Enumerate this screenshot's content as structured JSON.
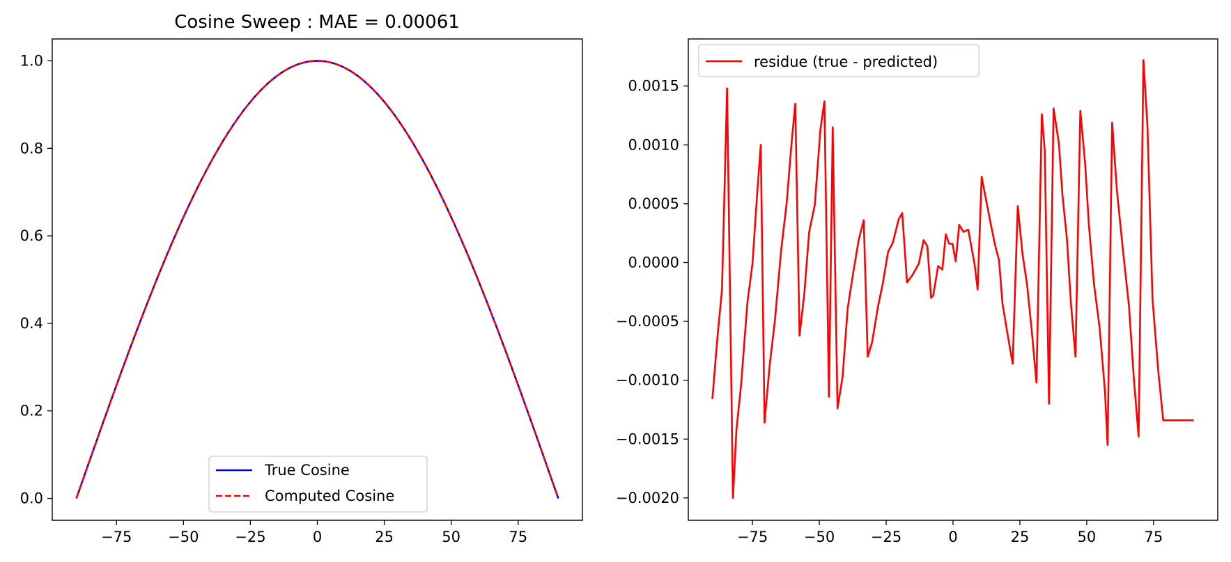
{
  "chart_data": [
    {
      "type": "line",
      "title": "Cosine Sweep : MAE = 0.00061",
      "xlabel": "",
      "ylabel": "",
      "xlim": [
        -99,
        99
      ],
      "ylim": [
        -0.05,
        1.05
      ],
      "xticks": [
        -75,
        -50,
        -25,
        0,
        25,
        50,
        75
      ],
      "xtick_labels": [
        "−75",
        "−50",
        "−25",
        "0",
        "25",
        "50",
        "75"
      ],
      "yticks": [
        0.0,
        0.2,
        0.4,
        0.6,
        0.8,
        1.0
      ],
      "ytick_labels": [
        "0.0",
        "0.2",
        "0.4",
        "0.6",
        "0.8",
        "1.0"
      ],
      "grid": false,
      "legend_position": "lower center",
      "series": [
        {
          "name": "True Cosine",
          "color": "#0000ff",
          "style": "solid",
          "function": "cos_deg",
          "x_range": [
            -90,
            90
          ]
        },
        {
          "name": "Computed Cosine",
          "color": "#ff0000",
          "style": "dashed",
          "function": "cos_deg",
          "x_range": [
            -90,
            90
          ]
        }
      ]
    },
    {
      "type": "line",
      "title": "",
      "xlabel": "",
      "ylabel": "",
      "xlim": [
        -99,
        99
      ],
      "ylim": [
        -0.00219,
        0.0019
      ],
      "xticks": [
        -75,
        -50,
        -25,
        0,
        25,
        50,
        75
      ],
      "xtick_labels": [
        "−75",
        "−50",
        "−25",
        "0",
        "25",
        "50",
        "75"
      ],
      "yticks": [
        -0.002,
        -0.0015,
        -0.001,
        -0.0005,
        0.0,
        0.0005,
        0.001,
        0.0015
      ],
      "ytick_labels": [
        "−0.0020",
        "−0.0015",
        "−0.0010",
        "−0.0005",
        "0.0000",
        "0.0005",
        "0.0010",
        "0.0015"
      ],
      "grid": false,
      "legend_position": "upper left",
      "series": [
        {
          "name": "residue (true - predicted)",
          "color": "#ff0000",
          "style": "solid",
          "x": [
            -90,
            -88.2,
            -86.4,
            -84.5,
            -82.3,
            -81,
            -79.3,
            -76.9,
            -75,
            -73.3,
            -71.9,
            -70.5,
            -68.6,
            -66.6,
            -64.3,
            -62.2,
            -60.4,
            -59,
            -57.4,
            -55.6,
            -53.8,
            -51.7,
            -49.6,
            -48.1,
            -46.4,
            -45,
            -43.2,
            -41.3,
            -39.4,
            -37.5,
            -35.3,
            -33.4,
            -31.9,
            -30.3,
            -28.1,
            -26.2,
            -24.3,
            -22.5,
            -20.3,
            -19,
            -17.2,
            -15,
            -12.8,
            -11,
            -9.6,
            -8.2,
            -7.4,
            -5.6,
            -4,
            -2.7,
            -1.5,
            -0.2,
            1,
            2.3,
            3.9,
            5.7,
            7.3,
            8.1,
            9.2,
            10.7,
            12.2,
            14,
            15.7,
            17.2,
            18.5,
            20.4,
            22.3,
            24.2,
            26,
            27.7,
            29.4,
            31.2,
            33.2,
            34.3,
            35.9,
            37.6,
            39.6,
            40.9,
            42.6,
            44.1,
            45.8,
            47.6,
            49.4,
            50.8,
            52.7,
            54.8,
            56.8,
            57.8,
            59.5,
            61.3,
            63.7,
            65.8,
            67.6,
            69.4,
            71.2,
            72.7,
            74.6,
            76.7,
            78.6,
            80.1,
            81.3,
            82.6,
            84.4,
            86.7,
            88.4,
            90
          ],
          "values": [
            -0.00116,
            -0.00066,
            -0.00023,
            0.00148,
            -0.002,
            -0.00142,
            -0.00105,
            -0.00034,
            -1e-05,
            0.00057,
            0.001,
            -0.00136,
            -0.00088,
            -0.00049,
            0.0001,
            0.00051,
            0.00101,
            0.00135,
            -0.00062,
            -0.00026,
            0.00026,
            0.00049,
            0.00113,
            0.00137,
            -0.00114,
            0.00115,
            -0.00124,
            -0.00097,
            -0.00039,
            -0.00011,
            0.00019,
            0.00036,
            -0.0008,
            -0.00068,
            -0.00038,
            -0.00017,
            9e-05,
            0.00017,
            0.00037,
            0.00042,
            -0.00017,
            -0.0001,
            -1e-05,
            0.00019,
            0.00014,
            -0.0003,
            -0.00028,
            -3e-05,
            -6e-05,
            0.00024,
            0.00016,
            0.00016,
            1e-05,
            0.00032,
            0.00026,
            0.00028,
            8e-05,
            -2e-05,
            -0.00023,
            0.00073,
            0.00055,
            0.00034,
            0.00015,
            2e-05,
            -0.00035,
            -0.00061,
            -0.00086,
            0.00048,
            7e-05,
            -0.00019,
            -0.00057,
            -0.00102,
            0.00126,
            0.00095,
            -0.0012,
            0.00131,
            0.00101,
            0.00058,
            0.0002,
            -0.00035,
            -0.0008,
            0.00129,
            0.00084,
            0.00032,
            -0.00018,
            -0.00055,
            -0.00109,
            -0.00155,
            0.00119,
            0.00061,
            7e-05,
            -0.00037,
            -0.00098,
            -0.00148,
            0.00172,
            0.00116,
            -0.00031,
            -0.00091,
            -0.00134,
            -0.00134,
            -0.00134,
            -0.00134,
            -0.00134,
            -0.00134,
            -0.00134,
            -0.00134
          ]
        }
      ]
    }
  ]
}
